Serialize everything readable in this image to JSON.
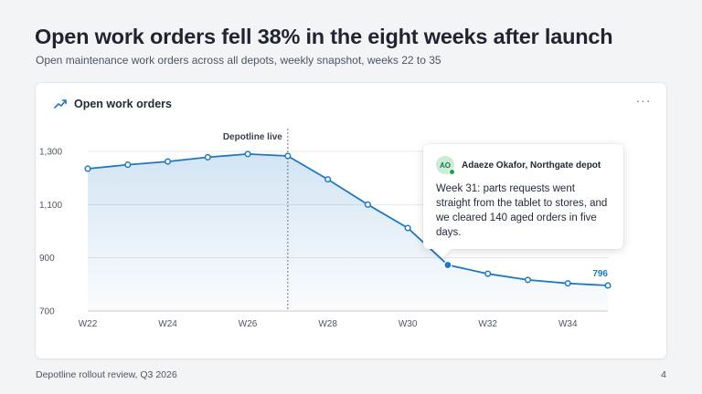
{
  "slide": {
    "headline": "Open work orders fell 38% in the eight weeks after launch",
    "subhead": "Open maintenance work orders across all depots, weekly snapshot, weeks 22 to 35",
    "footer_left": "Depotline rollout review, Q3 2026",
    "page_number": "4"
  },
  "card": {
    "title": "Open work orders",
    "title_icon": "trend-up-icon",
    "menu_icon": "more-horizontal-icon",
    "menu_label": "···"
  },
  "callout": {
    "avatar_initials": "AO",
    "author": "Adaeze Okafor, Northgate depot",
    "text": "Week 31: parts requests went straight from the tablet to stores, and we cleared 140 aged orders in five days."
  },
  "colors": {
    "accent": "#1f78c1",
    "avatar_bg": "#c9ecd8",
    "presence": "#1e9e50"
  },
  "chart_data": {
    "type": "area",
    "x": [
      22,
      23,
      24,
      25,
      26,
      27,
      28,
      29,
      30,
      31,
      32,
      33,
      34,
      35
    ],
    "values": [
      1235,
      1250,
      1262,
      1278,
      1290,
      1283,
      1195,
      1100,
      1012,
      873,
      840,
      817,
      804,
      796
    ],
    "x_tick_labels": [
      "W22",
      "W24",
      "W26",
      "W28",
      "W30",
      "W32",
      "W34"
    ],
    "x_tick_positions": [
      22,
      24,
      26,
      28,
      30,
      32,
      34
    ],
    "y_ticks": [
      700,
      900,
      1100,
      1300
    ],
    "y_tick_labels": [
      "700",
      "900",
      "1,100",
      "1,300"
    ],
    "xlim": [
      22,
      35
    ],
    "ylim": [
      700,
      1300
    ],
    "grid": true,
    "highlight_index": 9,
    "end_label": "796",
    "annotation": {
      "label": "Depotline live",
      "x": 27
    }
  }
}
